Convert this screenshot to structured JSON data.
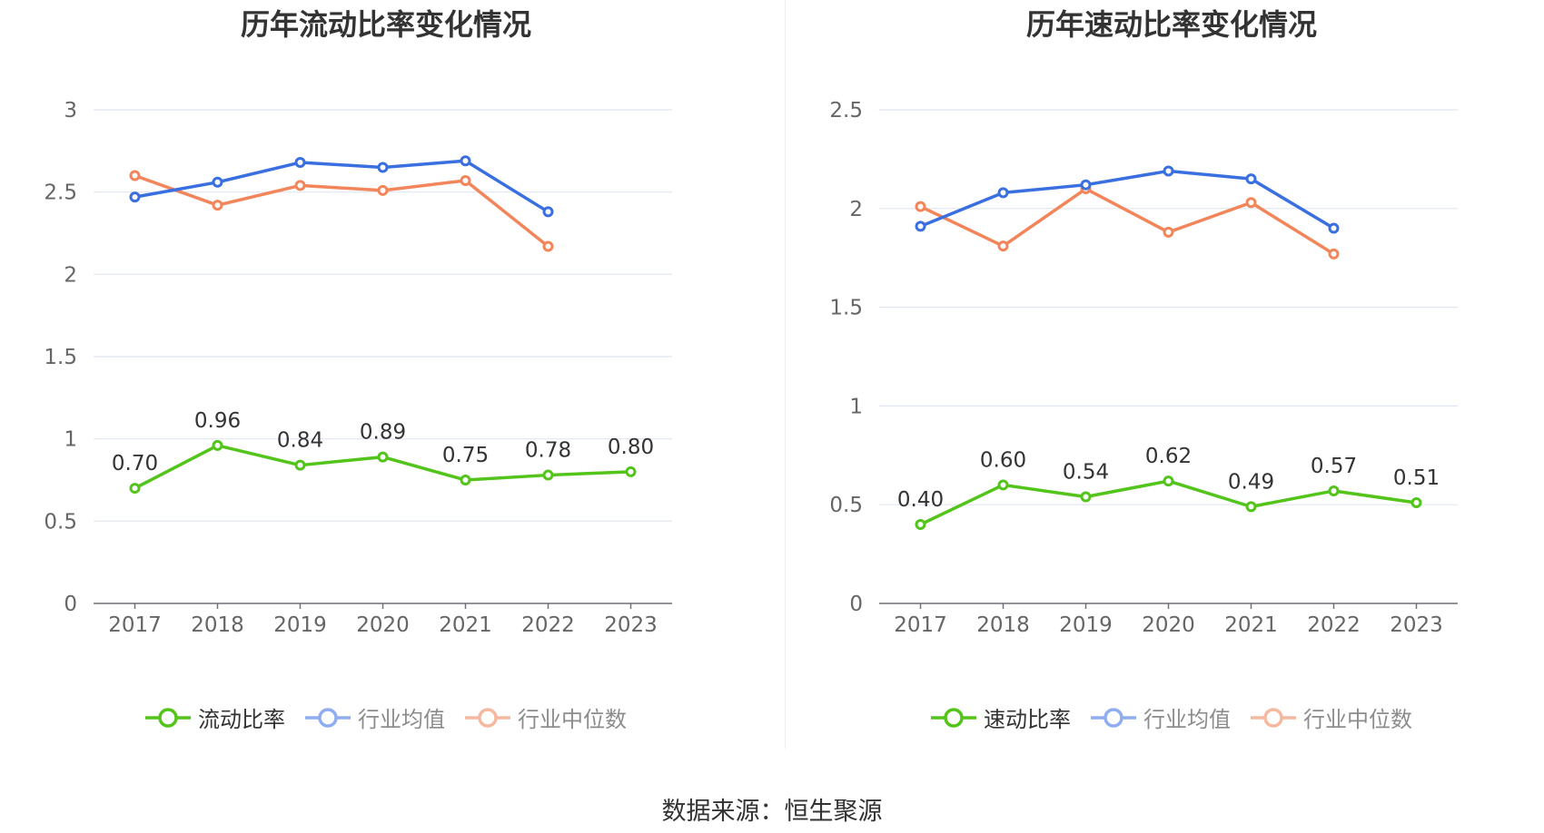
{
  "footer": {
    "source": "数据来源：恒生聚源"
  },
  "chart_data": [
    {
      "type": "line",
      "title": "历年流动比率变化情况",
      "categories": [
        "2017",
        "2018",
        "2019",
        "2020",
        "2021",
        "2022",
        "2023"
      ],
      "ylim": [
        0,
        3
      ],
      "yticks": [
        0,
        0.5,
        1,
        1.5,
        2,
        2.5,
        3
      ],
      "ytick_labels": [
        "0",
        "0.5",
        "1",
        "1.5",
        "2",
        "2.5",
        "3"
      ],
      "grid": true,
      "legend_position": "bottom",
      "series": [
        {
          "name": "流动比率",
          "color": "#52c41a",
          "values": [
            0.7,
            0.96,
            0.84,
            0.89,
            0.75,
            0.78,
            0.8
          ],
          "labels": [
            "0.70",
            "0.96",
            "0.84",
            "0.89",
            "0.75",
            "0.78",
            "0.80"
          ],
          "legend_muted": false
        },
        {
          "name": "行业均值",
          "color": "#3a6fe0",
          "legend_color": "#8fadf0",
          "values": [
            2.47,
            2.56,
            2.68,
            2.65,
            2.69,
            2.38,
            null
          ],
          "legend_muted": true
        },
        {
          "name": "行业中位数",
          "color": "#f2855a",
          "legend_color": "#f6b89f",
          "values": [
            2.6,
            2.42,
            2.54,
            2.51,
            2.57,
            2.17,
            null
          ],
          "legend_muted": true
        }
      ]
    },
    {
      "type": "line",
      "title": "历年速动比率变化情况",
      "categories": [
        "2017",
        "2018",
        "2019",
        "2020",
        "2021",
        "2022",
        "2023"
      ],
      "ylim": [
        0,
        2.5
      ],
      "yticks": [
        0,
        0.5,
        1,
        1.5,
        2,
        2.5
      ],
      "ytick_labels": [
        "0",
        "0.5",
        "1",
        "1.5",
        "2",
        "2.5"
      ],
      "grid": true,
      "legend_position": "bottom",
      "series": [
        {
          "name": "速动比率",
          "color": "#52c41a",
          "values": [
            0.4,
            0.6,
            0.54,
            0.62,
            0.49,
            0.57,
            0.51
          ],
          "labels": [
            "0.40",
            "0.60",
            "0.54",
            "0.62",
            "0.49",
            "0.57",
            "0.51"
          ],
          "legend_muted": false
        },
        {
          "name": "行业均值",
          "color": "#3a6fe0",
          "legend_color": "#8fadf0",
          "values": [
            1.91,
            2.08,
            2.12,
            2.19,
            2.15,
            1.9,
            null
          ],
          "legend_muted": true
        },
        {
          "name": "行业中位数",
          "color": "#f2855a",
          "legend_color": "#f6b89f",
          "values": [
            2.01,
            1.81,
            2.1,
            1.88,
            2.03,
            1.77,
            null
          ],
          "legend_muted": true
        }
      ]
    }
  ]
}
